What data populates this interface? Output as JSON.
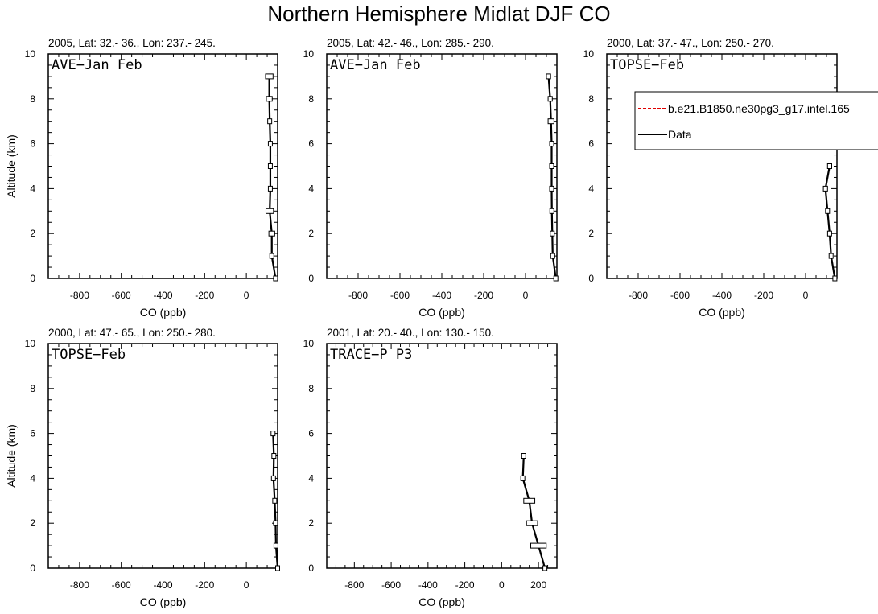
{
  "title": "Northern Hemisphere Midlat DJF CO",
  "colors": {
    "model": "#e00000",
    "data": "#000000"
  },
  "legend": {
    "entries": [
      {
        "label": "b.e21.B1850.ne30pg3_g17.intel.165",
        "color": "#e00000",
        "style": "dashed"
      },
      {
        "label": "Data",
        "color": "#000000",
        "style": "solid"
      }
    ]
  },
  "chart_data": [
    {
      "type": "line",
      "subtitle": "2005, Lat: 32.- 36., Lon: 237.- 245.",
      "label": "AVE−Jan Feb",
      "xlabel": "CO (ppb)",
      "ylabel": "Altitude (km)",
      "xlim": [
        -950,
        150
      ],
      "ylim": [
        0,
        10
      ],
      "xticks": [
        "-800",
        "-600",
        "-400",
        "-200",
        "0"
      ],
      "yticks": [
        "0",
        "2",
        "4",
        "6",
        "8",
        "10"
      ],
      "series": [
        {
          "points": [
            [
              110,
              9
            ],
            [
              110,
              8
            ],
            [
              112,
              7
            ],
            [
              115,
              6
            ],
            [
              115,
              5
            ],
            [
              115,
              4
            ],
            [
              112,
              3
            ],
            [
              122,
              2
            ],
            [
              122,
              1
            ],
            [
              140,
              0
            ]
          ],
          "err": [
            18,
            14,
            4,
            4,
            4,
            4,
            18,
            14,
            4,
            0
          ]
        }
      ]
    },
    {
      "type": "line",
      "subtitle": "2005, Lat: 42.- 46., Lon: 285.- 290.",
      "label": "AVE−Jan Feb",
      "xlabel": "CO (ppb)",
      "ylabel": "",
      "xlim": [
        -950,
        150
      ],
      "ylim": [
        0,
        10
      ],
      "xticks": [
        "-800",
        "-600",
        "-400",
        "-200",
        "0"
      ],
      "yticks": [
        "0",
        "2",
        "4",
        "6",
        "8",
        "10"
      ],
      "series": [
        {
          "points": [
            [
              110,
              9
            ],
            [
              118,
              8
            ],
            [
              122,
              7
            ],
            [
              125,
              6
            ],
            [
              125,
              5
            ],
            [
              125,
              4
            ],
            [
              126,
              3
            ],
            [
              128,
              2
            ],
            [
              130,
              1
            ],
            [
              145,
              0
            ]
          ],
          "err": [
            10,
            10,
            14,
            4,
            4,
            4,
            4,
            4,
            4,
            0
          ]
        }
      ]
    },
    {
      "type": "line",
      "subtitle": "2000, Lat: 37.- 47., Lon: 250.- 270.",
      "label": "TOPSE−Feb",
      "xlabel": "CO (ppb)",
      "ylabel": "",
      "xlim": [
        -950,
        150
      ],
      "ylim": [
        0,
        10
      ],
      "xticks": [
        "-800",
        "-600",
        "-400",
        "-200",
        "0"
      ],
      "yticks": [
        "0",
        "2",
        "4",
        "6",
        "8",
        "10"
      ],
      "legend": "inside",
      "series": [
        {
          "points": [
            [
              115,
              5
            ],
            [
              95,
              4
            ],
            [
              105,
              3
            ],
            [
              115,
              2
            ],
            [
              122,
              1
            ],
            [
              140,
              0
            ]
          ],
          "err": [
            10,
            10,
            8,
            8,
            8,
            0
          ]
        }
      ]
    },
    {
      "type": "line",
      "subtitle": "2000, Lat: 47.- 65., Lon: 250.- 280.",
      "label": "TOPSE−Feb",
      "xlabel": "CO (ppb)",
      "ylabel": "Altitude (km)",
      "xlim": [
        -950,
        150
      ],
      "ylim": [
        0,
        10
      ],
      "xticks": [
        "-800",
        "-600",
        "-400",
        "-200",
        "0"
      ],
      "yticks": [
        "0",
        "2",
        "4",
        "6",
        "8",
        "10"
      ],
      "series": [
        {
          "points": [
            [
              128,
              6
            ],
            [
              132,
              5
            ],
            [
              130,
              4
            ],
            [
              136,
              3
            ],
            [
              140,
              2
            ],
            [
              142,
              1
            ],
            [
              150,
              0
            ]
          ],
          "err": [
            4,
            6,
            6,
            6,
            6,
            6,
            0
          ]
        }
      ]
    },
    {
      "type": "line",
      "subtitle": "2001, Lat: 20.- 40., Lon: 130.- 150.",
      "label": "TRACE−P P3",
      "xlabel": "CO (ppb)",
      "ylabel": "",
      "xlim": [
        -950,
        300
      ],
      "ylim": [
        0,
        10
      ],
      "xticks": [
        "-800",
        "-600",
        "-400",
        "-200",
        "0",
        "200"
      ],
      "yticks": [
        "0",
        "2",
        "4",
        "6",
        "8",
        "10"
      ],
      "series": [
        {
          "points": [
            [
              120,
              5
            ],
            [
              115,
              4
            ],
            [
              150,
              3
            ],
            [
              165,
              2
            ],
            [
              200,
              1
            ],
            [
              235,
              0
            ]
          ],
          "err": [
            6,
            8,
            30,
            30,
            42,
            0
          ]
        }
      ]
    }
  ]
}
